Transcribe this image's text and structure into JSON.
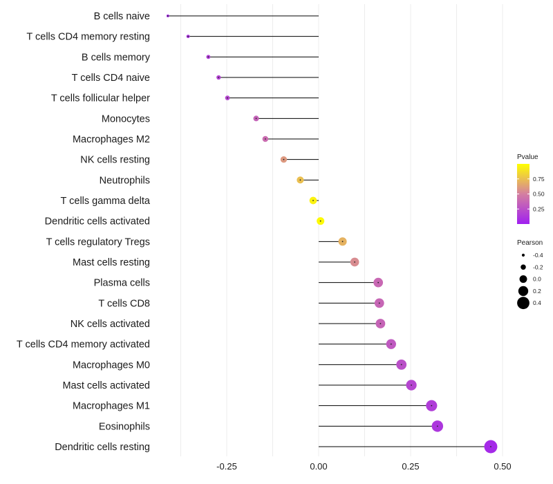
{
  "chart_data": {
    "type": "lollipop",
    "title": "",
    "xlabel": "",
    "ylabel": "",
    "xlim": [
      -0.375,
      0.5
    ],
    "x_ticks": [
      -0.25,
      0.0,
      0.25,
      0.5
    ],
    "x_tick_labels": [
      "-0.25",
      "0.00",
      "0.25",
      "0.50"
    ],
    "categories": [
      "B cells naive",
      "T cells CD4 memory resting",
      "B cells memory",
      "T cells CD4 naive",
      "T cells follicular helper",
      "Monocytes",
      "Macrophages M2",
      "NK cells resting",
      "Neutrophils",
      "T cells gamma delta",
      "Dendritic cells activated",
      "T cells regulatory  Tregs ",
      "Mast cells resting",
      "Plasma cells",
      "T cells CD8",
      "NK cells activated",
      "T cells CD4 memory activated",
      "Macrophages M0",
      "Mast cells activated",
      "Macrophages M1",
      "Eosinophils",
      "Dendritic cells resting"
    ],
    "pearson": [
      -0.41,
      -0.355,
      -0.3,
      -0.272,
      -0.248,
      -0.17,
      -0.145,
      -0.095,
      -0.05,
      -0.015,
      0.005,
      0.065,
      0.098,
      0.162,
      0.165,
      0.168,
      0.197,
      0.225,
      0.252,
      0.307,
      0.323,
      0.468
    ],
    "pvalue": [
      0.05,
      0.1,
      0.15,
      0.18,
      0.2,
      0.35,
      0.4,
      0.6,
      0.75,
      0.95,
      0.98,
      0.7,
      0.55,
      0.38,
      0.37,
      0.36,
      0.3,
      0.25,
      0.2,
      0.15,
      0.12,
      0.05
    ],
    "legend_color": {
      "title": "Pvalue",
      "ticks": [
        0.25,
        0.5,
        0.75
      ],
      "tick_labels": [
        "0.25",
        "0.50",
        "0.75"
      ],
      "range": [
        0.0,
        1.0
      ],
      "low_color": "#a020f0",
      "high_color": "#ffff00"
    },
    "legend_size": {
      "title": "Pearson",
      "values": [
        -0.4,
        -0.2,
        0.0,
        0.2,
        0.4
      ],
      "labels": [
        "-0.4",
        "-0.2",
        "0.0",
        "0.2",
        "0.4"
      ]
    },
    "grid": true,
    "legend_position": "right"
  },
  "colors": {
    "grid": "#ececec",
    "segment": "#000000",
    "point_low": "#a020f0",
    "point_mid": "#d47fa0",
    "point_high": "#ffff00"
  }
}
